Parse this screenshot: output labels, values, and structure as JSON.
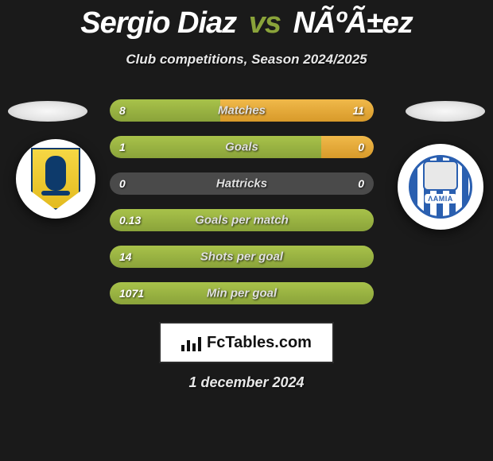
{
  "title": {
    "player1": "Sergio Diaz",
    "vs": "vs",
    "player2": "NÃºÃ±ez",
    "player1_color": "#ffffff",
    "player2_color": "#ffffff",
    "vs_color": "#8aa33a",
    "fontsize": 38
  },
  "subtitle": "Club competitions, Season 2024/2025",
  "colors": {
    "background": "#1a1a1a",
    "bar_track": "#4a4a4a",
    "left_fill": "#8aa33a",
    "right_fill": "#d89a2a",
    "text": "#e8e8e8",
    "label_shadow": "rgba(0,0,0,0.8)"
  },
  "spotlight": {
    "color": "#f0f0f0"
  },
  "crest_left": {
    "bg": "#ffffff",
    "shield_fill": "#e3bb1f",
    "accent": "#0d3a6b"
  },
  "crest_right": {
    "bg": "#ffffff",
    "stripe_a": "#2a5fb0",
    "stripe_b": "#ffffff",
    "label": "ΛΑΜΙΑ"
  },
  "rows": [
    {
      "label": "Matches",
      "left_val": "8",
      "right_val": "11",
      "left_pct": 42,
      "right_pct": 58
    },
    {
      "label": "Goals",
      "left_val": "1",
      "right_val": "0",
      "left_pct": 80,
      "right_pct": 20
    },
    {
      "label": "Hattricks",
      "left_val": "0",
      "right_val": "0",
      "left_pct": 0,
      "right_pct": 0
    },
    {
      "label": "Goals per match",
      "left_val": "0.13",
      "right_val": "",
      "left_pct": 100,
      "right_pct": 0
    },
    {
      "label": "Shots per goal",
      "left_val": "14",
      "right_val": "",
      "left_pct": 100,
      "right_pct": 0
    },
    {
      "label": "Min per goal",
      "left_val": "1071",
      "right_val": "",
      "left_pct": 100,
      "right_pct": 0
    }
  ],
  "row_style": {
    "height": 28,
    "gap": 18,
    "radius": 14,
    "label_fontsize": 15,
    "value_fontsize": 14
  },
  "brand": {
    "icon": "bar-chart-icon",
    "text": "FcTables.com"
  },
  "date": "1 december 2024"
}
